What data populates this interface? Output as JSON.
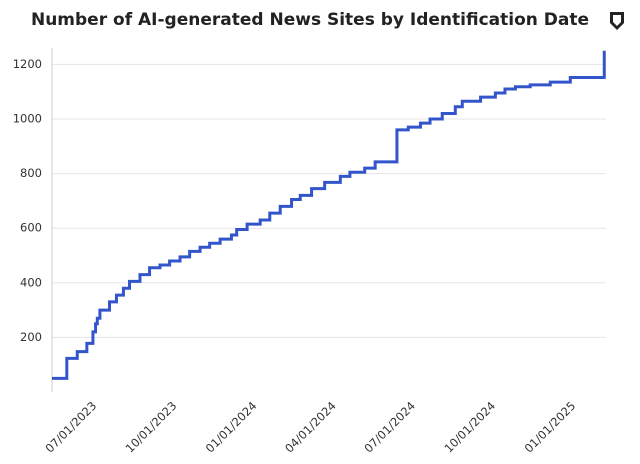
{
  "chart_data": {
    "type": "step",
    "title": "Number of AI-generated News Sites by Identification Date",
    "color": "#3355cc",
    "x": [
      "2023-05-13",
      "2023-05-30",
      "2023-06-11",
      "2023-06-22",
      "2023-06-29",
      "2023-07-02",
      "2023-07-04",
      "2023-07-07",
      "2023-07-18",
      "2023-07-26",
      "2023-08-03",
      "2023-08-10",
      "2023-08-22",
      "2023-09-02",
      "2023-09-14",
      "2023-09-25",
      "2023-10-07",
      "2023-10-18",
      "2023-10-30",
      "2023-11-10",
      "2023-11-22",
      "2023-12-05",
      "2023-12-11",
      "2023-12-23",
      "2024-01-07",
      "2024-01-18",
      "2024-01-30",
      "2024-02-12",
      "2024-02-22",
      "2024-03-06",
      "2024-03-21",
      "2024-04-08",
      "2024-04-19",
      "2024-05-06",
      "2024-05-18",
      "2024-06-12",
      "2024-06-25",
      "2024-07-09",
      "2024-07-20",
      "2024-08-03",
      "2024-08-18",
      "2024-08-26",
      "2024-09-16",
      "2024-10-03",
      "2024-10-14",
      "2024-10-26",
      "2024-11-12",
      "2024-12-05",
      "2024-12-28",
      "2025-02-05"
    ],
    "values": [
      50,
      123,
      148,
      178,
      220,
      250,
      270,
      300,
      330,
      355,
      380,
      405,
      430,
      455,
      465,
      480,
      495,
      515,
      530,
      545,
      560,
      575,
      595,
      615,
      630,
      655,
      680,
      705,
      720,
      745,
      768,
      790,
      805,
      820,
      843,
      960,
      970,
      985,
      1000,
      1020,
      1045,
      1065,
      1080,
      1095,
      1110,
      1118,
      1125,
      1135,
      1152,
      1250
    ],
    "xlim": [
      "2023-05-13",
      "2025-02-07"
    ],
    "xticks": [
      {
        "value": "2023-07-01",
        "label": "07/01/2023"
      },
      {
        "value": "2023-10-01",
        "label": "10/01/2023"
      },
      {
        "value": "2024-01-01",
        "label": "01/01/2024"
      },
      {
        "value": "2024-04-01",
        "label": "04/01/2024"
      },
      {
        "value": "2024-07-01",
        "label": "07/01/2024"
      },
      {
        "value": "2024-10-01",
        "label": "10/01/2024"
      },
      {
        "value": "2025-01-01",
        "label": "01/01/2025"
      }
    ],
    "ylim": [
      0,
      1260
    ],
    "yticks": [
      200,
      400,
      600,
      800,
      1000,
      1200
    ],
    "grid": true
  }
}
